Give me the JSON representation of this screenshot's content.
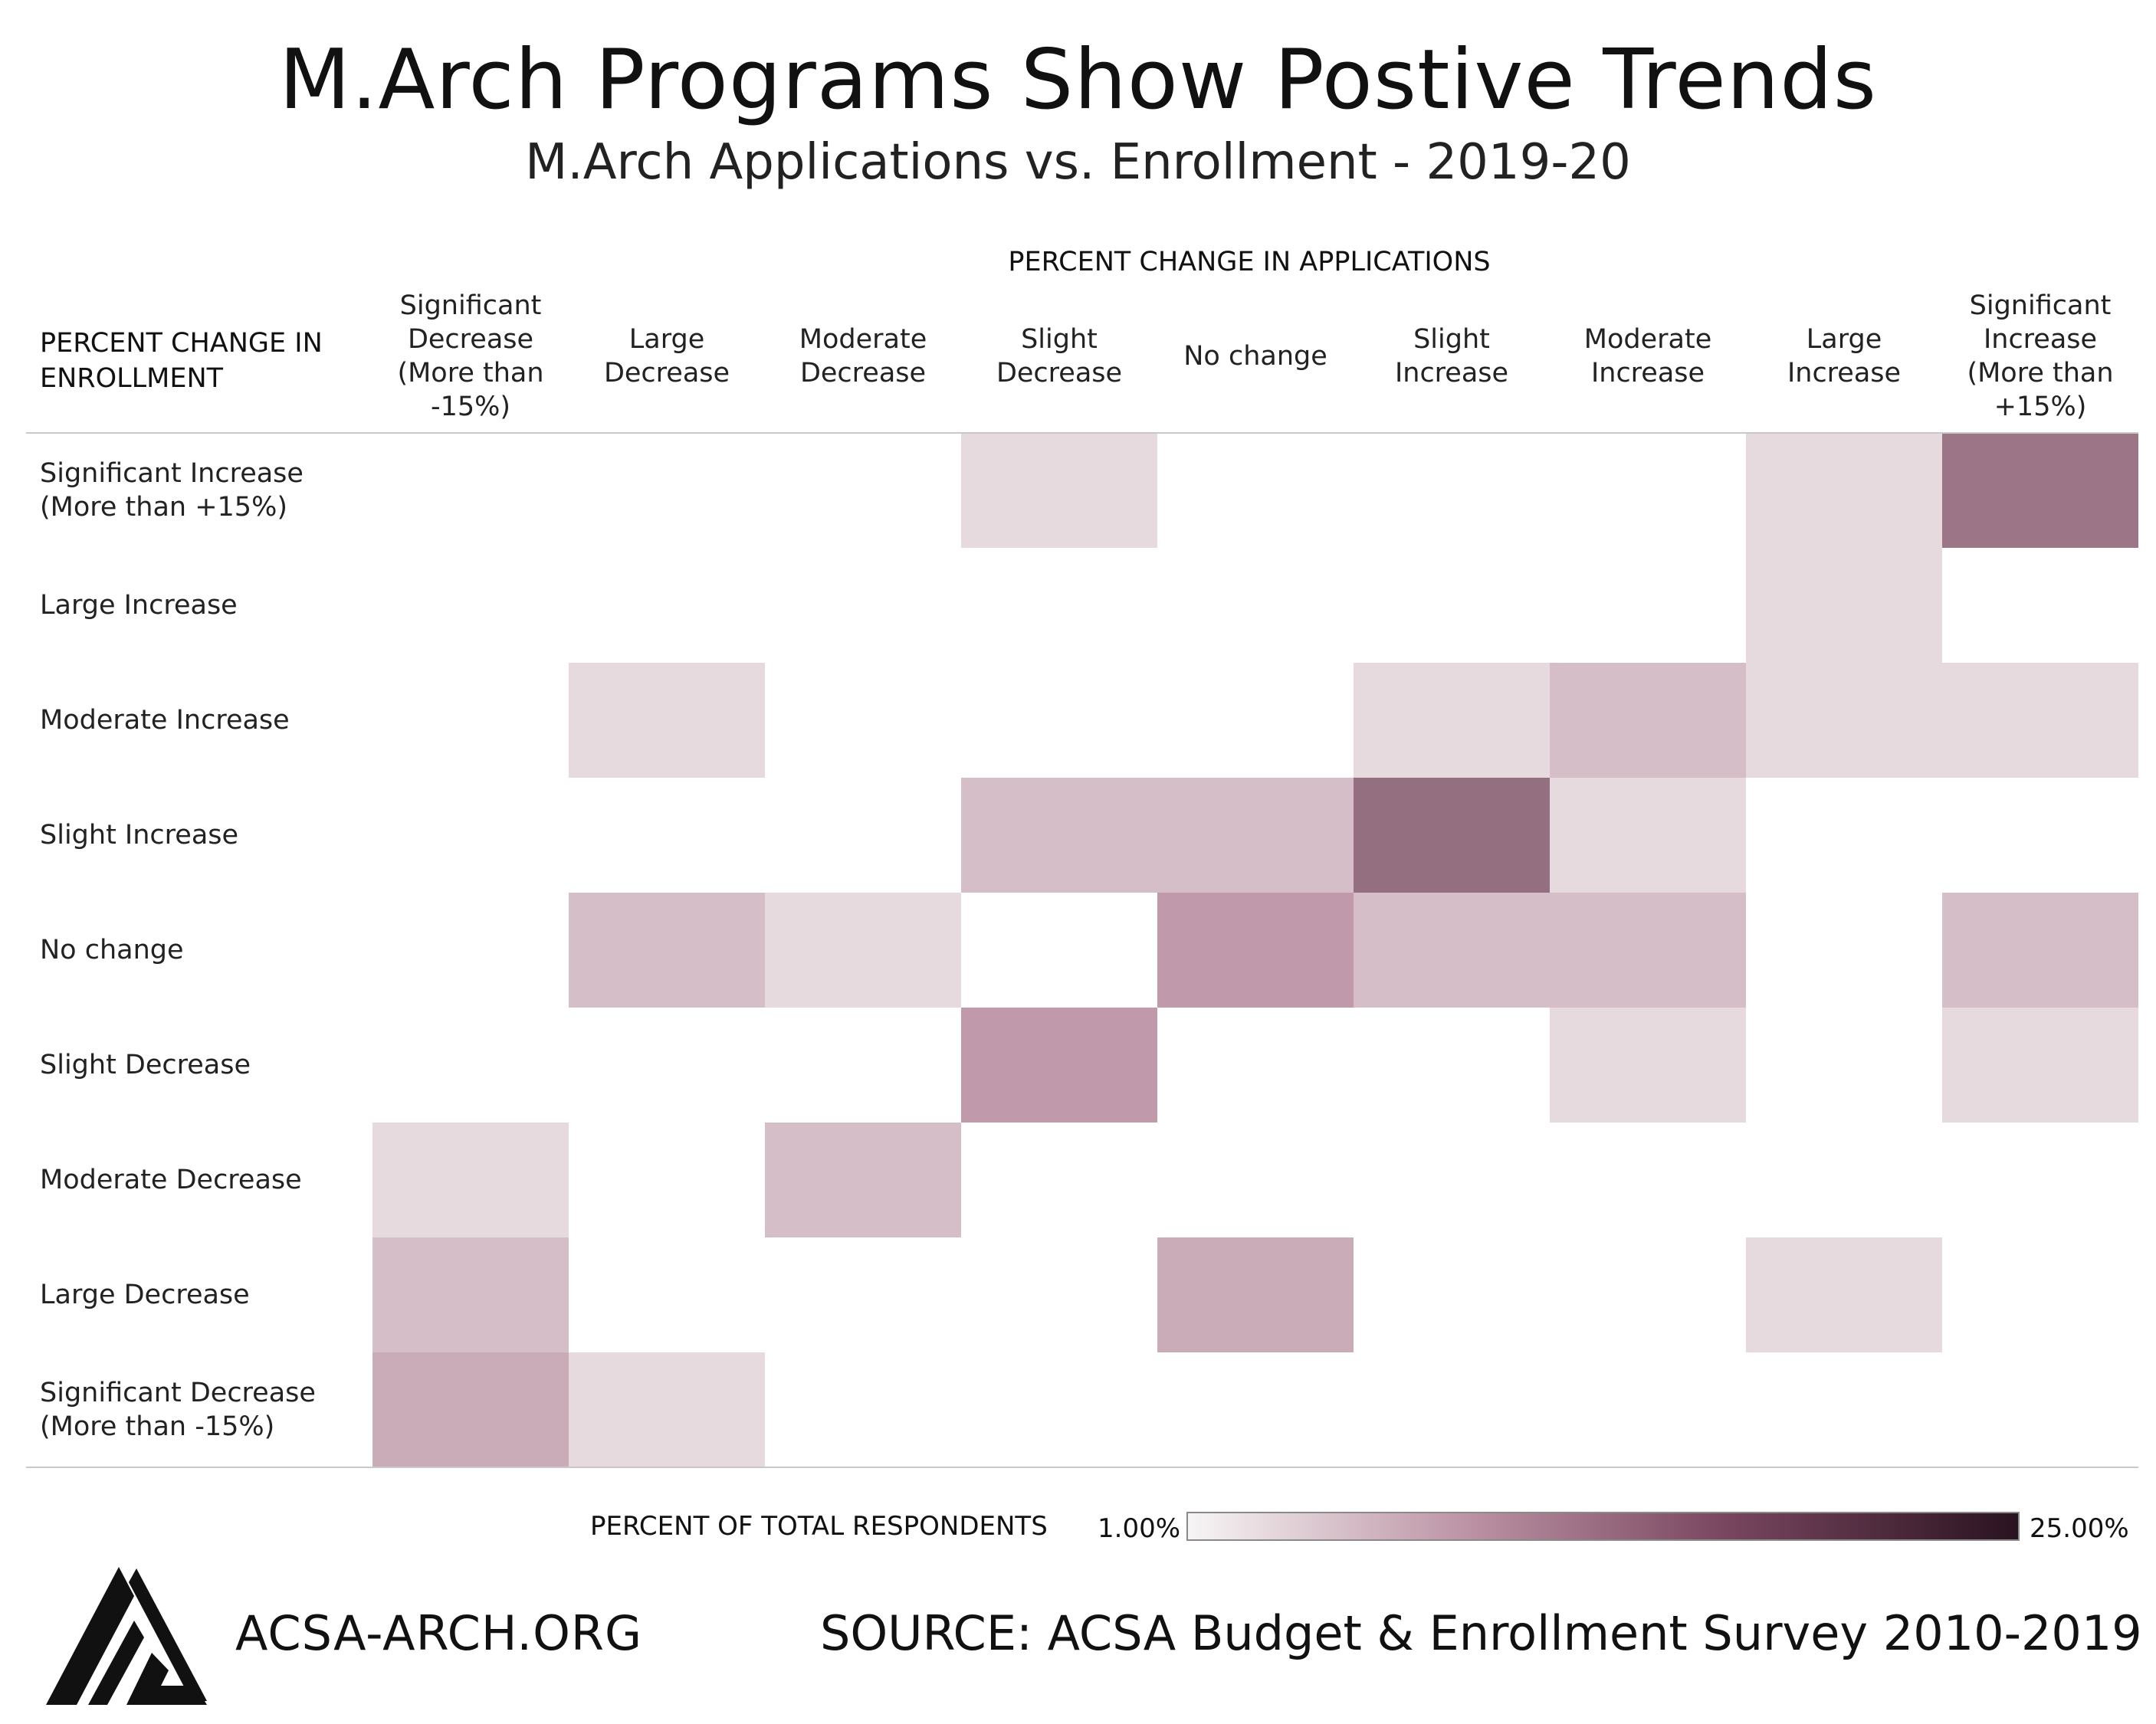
{
  "title": "M.Arch Programs Show Postive Trends",
  "subtitle": "M.Arch Applications vs. Enrollment - 2019-20",
  "footer": {
    "site": "ACSA-ARCH.ORG",
    "source": "SOURCE: ACSA Budget & Enrollment Survey 2010-2019"
  },
  "colors": {
    "low": "#f7f5f5",
    "mid": "#b98fa1",
    "high": "#2a1320"
  },
  "chart_data": {
    "type": "heatmap",
    "x_axis_title": "PERCENT CHANGE IN APPLICATIONS",
    "y_axis_title": "PERCENT CHANGE IN ENROLLMENT",
    "x_categories": [
      "Significant Decrease (More than -15%)",
      "Large Decrease",
      "Moderate Decrease",
      "Slight Decrease",
      "No change",
      "Slight Increase",
      "Moderate Increase",
      "Large Increase",
      "Significant Increase (More than +15%)"
    ],
    "y_categories": [
      "Significant Increase (More than +15%)",
      "Large Increase",
      "Moderate Increase",
      "Slight Increase",
      "No change",
      "Slight Decrease",
      "Moderate Decrease",
      "Large Decrease",
      "Significant Decrease (More than -15%)"
    ],
    "values": [
      [
        null,
        null,
        null,
        1.6,
        null,
        null,
        null,
        1.6,
        10.5
      ],
      [
        null,
        null,
        null,
        null,
        null,
        null,
        null,
        1.6,
        null
      ],
      [
        null,
        1.6,
        null,
        null,
        null,
        1.6,
        3.2,
        1.6,
        1.6
      ],
      [
        null,
        null,
        null,
        3.2,
        3.2,
        11.3,
        1.6,
        null,
        null
      ],
      [
        null,
        3.2,
        1.6,
        null,
        6.5,
        3.2,
        3.2,
        null,
        3.2
      ],
      [
        null,
        null,
        null,
        6.5,
        null,
        null,
        1.6,
        null,
        1.6
      ],
      [
        1.6,
        null,
        3.2,
        null,
        null,
        null,
        null,
        null,
        null
      ],
      [
        3.2,
        null,
        null,
        null,
        4.8,
        null,
        null,
        1.6,
        null
      ],
      [
        4.8,
        1.6,
        null,
        null,
        null,
        null,
        null,
        null,
        null
      ]
    ],
    "legend": {
      "title": "PERCENT OF TOTAL RESPONDENTS",
      "min_label": "1.00%",
      "max_label": "25.00%",
      "min": 1.0,
      "max": 25.0
    }
  }
}
